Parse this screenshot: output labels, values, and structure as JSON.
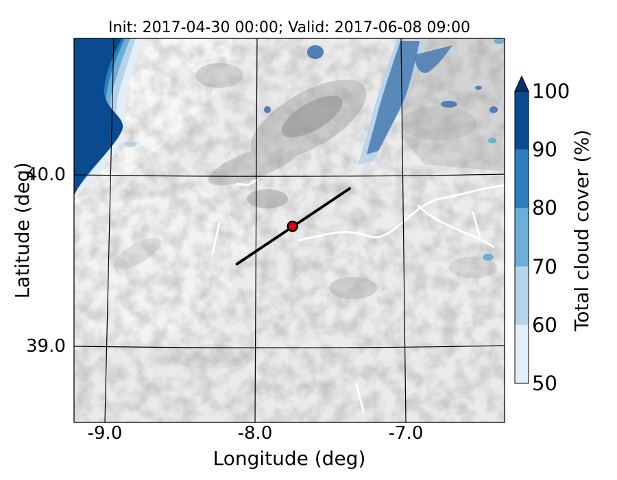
{
  "title": "Init: 2017-04-30 00:00; Valid: 2017-06-08 09:00",
  "x_axis": {
    "label": "Longitude (deg)",
    "ticks": [
      {
        "value": -9.0,
        "label": "-9.0"
      },
      {
        "value": -8.0,
        "label": "-8.0"
      },
      {
        "value": -7.0,
        "label": "-7.0"
      }
    ]
  },
  "y_axis": {
    "label": "Latitude (deg)",
    "ticks": [
      {
        "value": 40.0,
        "label": "40.0"
      },
      {
        "value": 39.0,
        "label": "39.0"
      }
    ]
  },
  "colorbar": {
    "label": "Total cloud cover (%)",
    "ticks": [
      "50",
      "60",
      "70",
      "80",
      "90",
      "100"
    ],
    "levels": [
      50,
      60,
      70,
      80,
      90,
      100
    ],
    "colors": [
      "#e3eef8",
      "#b6d3ea",
      "#6baed6",
      "#2d7ebd",
      "#0a4a90"
    ],
    "extend": "max"
  },
  "map": {
    "background": "grayscale terrain (orography)",
    "cloud_color_ramp": "Blues",
    "section_line": {
      "start": {
        "lon": -8.12,
        "lat": 39.48
      },
      "end": {
        "lon": -7.37,
        "lat": 39.92
      }
    },
    "site_marker": {
      "lon": -7.75,
      "lat": 39.7,
      "color": "#e00000"
    }
  }
}
